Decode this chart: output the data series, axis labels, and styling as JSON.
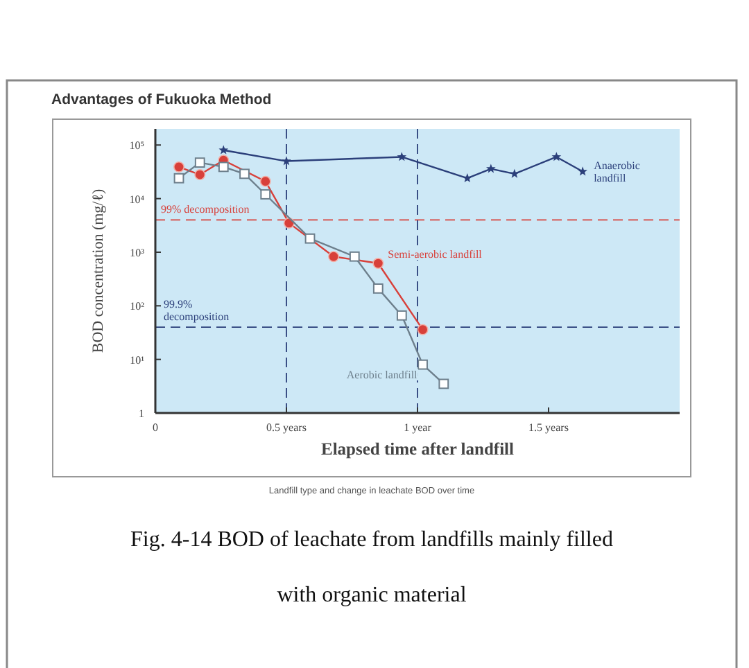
{
  "chart_data": {
    "type": "line",
    "title": "Advantages of Fukuoka Method",
    "xlabel": "Elapsed time after landfill",
    "ylabel": "BOD concentration (mg/ℓ)",
    "log": "y",
    "xlim": [
      0,
      2
    ],
    "xticks": [
      0,
      {
        "value": 0.5,
        "label": "0.5 years"
      },
      {
        "value": 1,
        "label": "1 year"
      },
      {
        "value": 1.5,
        "label": "1.5 years"
      }
    ],
    "ylim": [
      1,
      200000
    ],
    "yticks": [
      1,
      {
        "value": 10,
        "label": "10¹"
      },
      {
        "value": 100,
        "label": "10²"
      },
      {
        "value": 1000,
        "label": "10³"
      },
      {
        "value": 10000,
        "label": "10⁴"
      },
      {
        "value": 100000,
        "label": "10⁵"
      }
    ],
    "series": [
      {
        "name": "Anaerobic landfill",
        "color": "#2b3f7a",
        "marker": "star",
        "x": [
          0.26,
          0.5,
          0.94,
          1.19,
          1.28,
          1.37,
          1.53,
          1.63
        ],
        "values": [
          80000,
          50000,
          60000,
          24000,
          36000,
          29000,
          60000,
          32000
        ]
      },
      {
        "name": "Semi-aerobic landfill",
        "color": "#d8403a",
        "marker": "circle",
        "x": [
          0.09,
          0.17,
          0.26,
          0.42,
          0.51,
          0.68,
          0.85,
          1.02
        ],
        "values": [
          39000,
          28000,
          52000,
          21000,
          3500,
          830,
          620,
          36
        ]
      },
      {
        "name": "Aerobic landfill",
        "color": "#6d7f8c",
        "marker": "square",
        "x": [
          0.09,
          0.17,
          0.26,
          0.34,
          0.42,
          0.59,
          0.76,
          0.85,
          0.94,
          1.02,
          1.1
        ],
        "values": [
          24000,
          47000,
          39000,
          29000,
          12000,
          1800,
          830,
          210,
          66,
          8,
          3.5
        ]
      }
    ],
    "ref_lines": [
      {
        "axis": "y",
        "value": 4000,
        "label": "99% decomposition",
        "color": "#d8403a",
        "line_style": "dashed"
      },
      {
        "axis": "y",
        "value": 40,
        "label": "99.9% decomposition",
        "color": "#2b3f7a",
        "line_style": "dashed"
      },
      {
        "axis": "x",
        "value": 0.5,
        "color": "#2b3f7a",
        "line_style": "dashed"
      },
      {
        "axis": "x",
        "value": 1,
        "color": "#2b3f7a",
        "line_style": "dashed"
      }
    ],
    "annotations": [
      "Landfill type and change in leachate BOD over time",
      "Fig. 4-14 BOD of leachate from landfills mainly filled with organic material"
    ]
  }
}
